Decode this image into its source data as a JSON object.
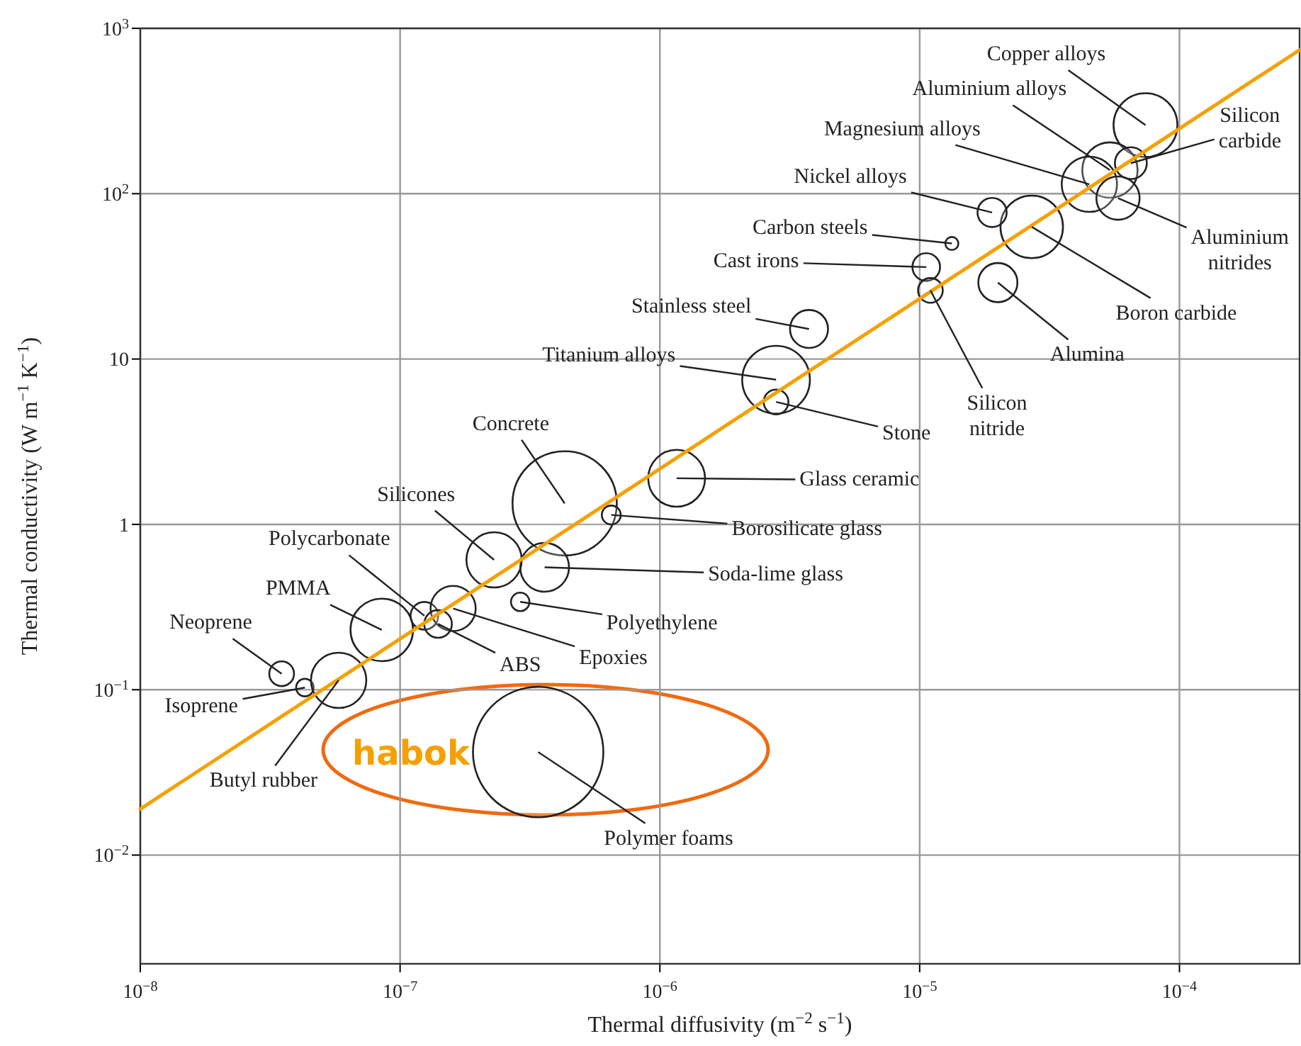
{
  "chart_data": {
    "type": "bubble",
    "xlabel": "Thermal diffusivity (m$^{−2}$ s$^{−1}$)",
    "ylabel": "Thermal conductivity (W m$^{−1}$ K$^{−1}$)",
    "xlim": [
      1e-08,
      0.00029
    ],
    "ylim": [
      0.0022,
      1000
    ],
    "xticks": [
      {
        "value": 1e-08,
        "label": "10$^{−8}$"
      },
      {
        "value": 1e-07,
        "label": "10$^{−7}$"
      },
      {
        "value": 1e-06,
        "label": "10$^{−6}$"
      },
      {
        "value": 1e-05,
        "label": "10$^{−5}$"
      },
      {
        "value": 0.0001,
        "label": "10$^{−4}$"
      }
    ],
    "yticks": [
      {
        "value": 0.01,
        "label": "10$^{−2}$"
      },
      {
        "value": 0.1,
        "label": "10$^{−1}$"
      },
      1,
      10,
      {
        "value": 100,
        "label": "10$^{2}$"
      },
      {
        "value": 1000,
        "label": "10$^{3}$"
      }
    ],
    "log": "xy",
    "grid": true,
    "series": [
      {
        "color": "#222222",
        "sizes": [
          0.24,
          0.18,
          0.18,
          0.06,
          0.11,
          0.23,
          0.05,
          0.01,
          0.045,
          0.09,
          0.036,
          0.085,
          0.27,
          0.036,
          0.64,
          0.19,
          0.021,
          0.14,
          0.18,
          0.045,
          0.23,
          0.02,
          0.12,
          0.045,
          0.036,
          0.018,
          0.18,
          1
        ],
        "x": [
          7.4e-05,
          5.4e-05,
          4.5e-05,
          6.5e-05,
          5.8e-05,
          2.7e-05,
          1.9e-05,
          1.33e-05,
          1.06e-05,
          2e-05,
          1.1e-05,
          3.75e-06,
          2.8e-06,
          2.8e-06,
          4.3e-07,
          1.16e-06,
          6.5e-07,
          3.6e-07,
          2.3e-07,
          1.24e-07,
          8.5e-08,
          2.9e-07,
          1.6e-07,
          1.4e-07,
          3.5e-08,
          4.3e-08,
          5.8e-08,
          3.4e-07
        ],
        "values": [
          260,
          139,
          114,
          153,
          94,
          63,
          77,
          50,
          36,
          29,
          26,
          15.2,
          7.5,
          5.5,
          1.34,
          1.9,
          1.14,
          0.55,
          0.61,
          0.28,
          0.23,
          0.34,
          0.31,
          0.25,
          0.125,
          0.103,
          0.114,
          0.042
        ],
        "name": null
      },
      {
        "type": "line",
        "color": "#f5a000",
        "x": [
          1e-08,
          0.00029
        ],
        "values": [
          0.019,
          740
        ]
      }
    ],
    "annotations": [
      {
        "text": "Copper alloys",
        "x": 7.4e-05,
        "y": 260
      },
      {
        "text": "Aluminium alloys",
        "x": 5.4e-05,
        "y": 139
      },
      {
        "text": "Magnesium alloys",
        "x": 4.5e-05,
        "y": 114
      },
      {
        "text": "Silicon carbide",
        "x": 6.5e-05,
        "y": 153
      },
      {
        "text": "Aluminium nitrides",
        "x": 5.8e-05,
        "y": 94
      },
      {
        "text": "Boron carbide",
        "x": 2.7e-05,
        "y": 63
      },
      {
        "text": "Nickel alloys",
        "x": 1.9e-05,
        "y": 77
      },
      {
        "text": "Carbon steels",
        "x": 1.33e-05,
        "y": 50
      },
      {
        "text": "Cast irons",
        "x": 1.06e-05,
        "y": 36
      },
      {
        "text": "Alumina",
        "x": 2e-05,
        "y": 29
      },
      {
        "text": "Silicon nitride",
        "x": 1.1e-05,
        "y": 26
      },
      {
        "text": "Stainless steel",
        "x": 3.75e-06,
        "y": 15.2
      },
      {
        "text": "Titanium alloys",
        "x": 2.8e-06,
        "y": 7.5
      },
      {
        "text": "Stone",
        "x": 2.8e-06,
        "y": 5.5
      },
      {
        "text": "Concrete",
        "x": 4.3e-07,
        "y": 1.34
      },
      {
        "text": "Glass ceramic",
        "x": 1.16e-06,
        "y": 1.9
      },
      {
        "text": "Borosilicate glass",
        "x": 6.5e-07,
        "y": 1.14
      },
      {
        "text": "Soda-lime glass",
        "x": 3.6e-07,
        "y": 0.55
      },
      {
        "text": "Silicones",
        "x": 2.3e-07,
        "y": 0.61
      },
      {
        "text": "Polycarbonate",
        "x": 1.24e-07,
        "y": 0.28
      },
      {
        "text": "PMMA",
        "x": 8.5e-08,
        "y": 0.23
      },
      {
        "text": "Polyethylene",
        "x": 2.9e-07,
        "y": 0.34
      },
      {
        "text": "Epoxies",
        "x": 1.6e-07,
        "y": 0.31
      },
      {
        "text": "ABS",
        "x": 1.4e-07,
        "y": 0.25
      },
      {
        "text": "Neoprene",
        "x": 3.5e-08,
        "y": 0.125
      },
      {
        "text": "Isoprene",
        "x": 4.3e-08,
        "y": 0.103
      },
      {
        "text": "Butyl rubber",
        "x": 5.8e-08,
        "y": 0.114
      },
      {
        "text": "Polymer foams",
        "x": 3.4e-07,
        "y": 0.042
      },
      "habok"
    ]
  }
}
